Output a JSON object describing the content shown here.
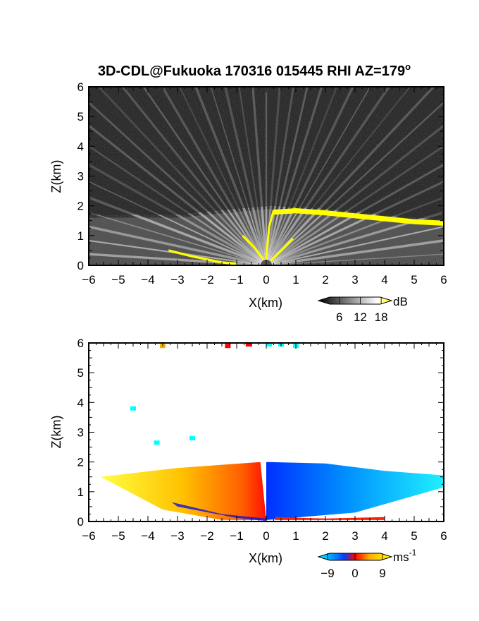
{
  "title_main": "3D-CDL@Fukuoka 170316 015445 RHI AZ=179",
  "title_sup": "o",
  "chart_data": [
    {
      "type": "heatmap",
      "quantity": "reflectivity",
      "xlabel": "X(km)",
      "ylabel": "Z(km)",
      "xlim": [
        -6,
        6
      ],
      "ylim": [
        0,
        6
      ],
      "xticks": [
        "-6",
        "-5",
        "-4",
        "-3",
        "-2",
        "-1",
        "0",
        "1",
        "2",
        "3",
        "4",
        "5",
        "6"
      ],
      "yticks": [
        "0",
        "1",
        "2",
        "3",
        "4",
        "5",
        "6"
      ],
      "colorbar": {
        "unit": "dB",
        "ticks": [
          "6",
          "12",
          "18"
        ],
        "tick_values": [
          6,
          12,
          18
        ],
        "range": [
          0,
          21
        ],
        "colors": [
          "#000000",
          "#ffffff",
          "#ffff00"
        ]
      },
      "features": {
        "background_noise": "dark gray speckle",
        "beam_spokes_origin": [
          0,
          0
        ],
        "echo_layer": [
          [
            -6,
            1.6
          ],
          [
            -3,
            1.6
          ],
          [
            -1,
            1.8
          ],
          [
            0.2,
            1.9
          ],
          [
            1,
            1.85
          ],
          [
            2,
            1.8
          ],
          [
            3,
            1.7
          ],
          [
            4,
            1.6
          ],
          [
            5,
            1.5
          ],
          [
            6,
            1.45
          ]
        ],
        "yellow_edge": [
          [
            0.25,
            1.82
          ],
          [
            1,
            1.87
          ],
          [
            2,
            1.8
          ],
          [
            3,
            1.7
          ],
          [
            4,
            1.6
          ],
          [
            5,
            1.5
          ],
          [
            6,
            1.45
          ]
        ],
        "yellow_ground": [
          [
            -3.3,
            0.5
          ],
          [
            -2.5,
            0.3
          ],
          [
            -1.5,
            0.1
          ],
          [
            -1,
            0.05
          ]
        ]
      }
    },
    {
      "type": "heatmap",
      "quantity": "radial_velocity",
      "xlabel": "X(km)",
      "ylabel": "Z(km)",
      "xlim": [
        -6,
        6
      ],
      "ylim": [
        0,
        6
      ],
      "xticks": [
        "-6",
        "-5",
        "-4",
        "-3",
        "-2",
        "-1",
        "0",
        "1",
        "2",
        "3",
        "4",
        "5",
        "6"
      ],
      "yticks": [
        "0",
        "1",
        "2",
        "3",
        "4",
        "5",
        "6"
      ],
      "colorbar": {
        "unit": "ms",
        "unit_sup": "-1",
        "ticks": [
          "-9",
          "0",
          "9"
        ],
        "tick_values": [
          -9,
          0,
          9
        ],
        "range": [
          -12,
          12
        ],
        "colors": [
          "#00ffff",
          "#0040ff",
          "#ff0000",
          "#ffb000",
          "#ffff00"
        ]
      },
      "features": {
        "positive_region": [
          [
            -5.6,
            1.5
          ],
          [
            -3,
            1.8
          ],
          [
            -0.2,
            2.0
          ],
          [
            0,
            0.05
          ],
          [
            -1.5,
            0.05
          ],
          [
            -3.5,
            0.4
          ]
        ],
        "negative_region": [
          [
            0,
            2.0
          ],
          [
            2,
            1.95
          ],
          [
            4,
            1.7
          ],
          [
            6,
            1.55
          ],
          [
            6,
            1.15
          ],
          [
            3,
            0.3
          ],
          [
            0,
            0.05
          ]
        ],
        "aloft_pixels": [
          [
            -3.5,
            5.9,
            8
          ],
          [
            -1.3,
            5.9,
            4
          ],
          [
            -0.6,
            5.95,
            4
          ],
          [
            0.1,
            5.95,
            -8
          ],
          [
            0.5,
            5.95,
            -8
          ],
          [
            1,
            5.9,
            -8
          ],
          [
            -4.5,
            3.8,
            -12
          ],
          [
            -3.7,
            2.65,
            -12
          ],
          [
            -2.5,
            2.8,
            -12
          ]
        ]
      }
    }
  ]
}
